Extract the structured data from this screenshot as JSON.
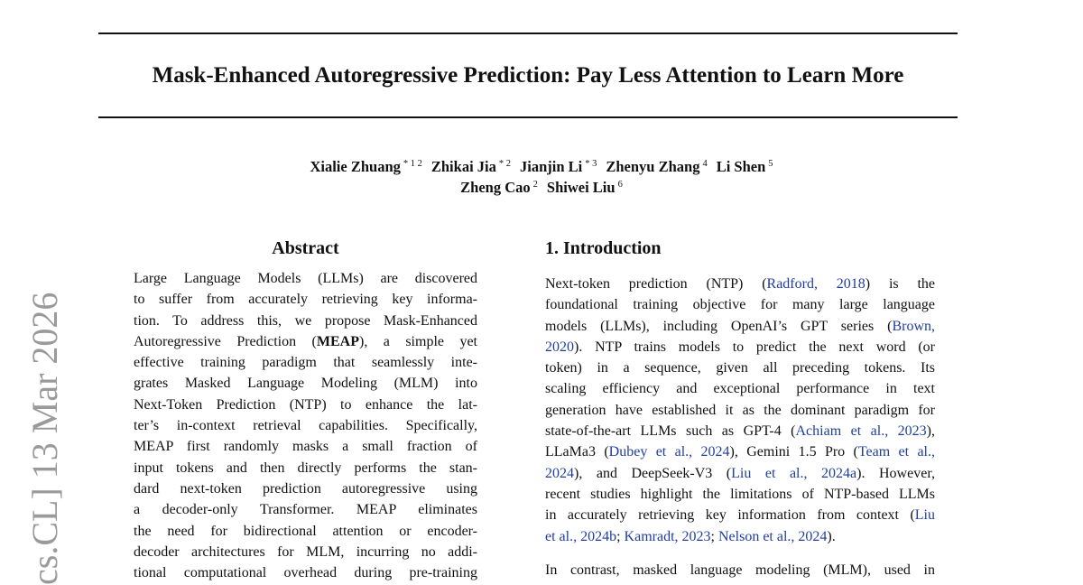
{
  "title": "Mask-Enhanced Autoregressive Prediction: Pay Less Attention to Learn More",
  "authors_line1": [
    {
      "name": "Xialie Zhuang",
      "aff": "* 1 2"
    },
    {
      "name": "Zhikai Jia",
      "aff": "* 2"
    },
    {
      "name": "Jianjin Li",
      "aff": "* 3"
    },
    {
      "name": "Zhenyu Zhang",
      "aff": "4"
    },
    {
      "name": "Li Shen",
      "aff": "5"
    }
  ],
  "authors_line2": [
    {
      "name": "Zheng Cao",
      "aff": "2"
    },
    {
      "name": "Shiwei Liu",
      "aff": "6"
    }
  ],
  "arxiv_stamp": "cs.CL]  13 Mar 2026",
  "abstract": {
    "heading": "Abstract",
    "lines": [
      "Large Language Models (LLMs) are discovered",
      "to suffer from accurately retrieving key informa-",
      "tion. To address this, we propose Mask-Enhanced",
      "Autoregressive Prediction (MEAP), a simple yet",
      "effective training paradigm that seamlessly inte-",
      "grates Masked Language Modeling (MLM) into",
      "Next-Token Prediction (NTP) to enhance the lat-",
      "ter’s in-context retrieval capabilities. Specifically,",
      "MEAP first randomly masks a small fraction of",
      "input tokens and then directly performs the stan-",
      "dard next-token prediction autoregressive using",
      "a decoder-only Transformer. MEAP eliminates",
      "the need for bidirectional attention or encoder-",
      "decoder architectures for MLM, incurring no addi-",
      "tional computational overhead during pre-training"
    ]
  },
  "introduction": {
    "heading": "1. Introduction",
    "p1_lines": [
      [
        {
          "t": "Next-token prediction (NTP) ("
        },
        {
          "t": "Radford, 2018",
          "c": 1
        },
        {
          "t": ") is the"
        }
      ],
      [
        {
          "t": "foundational training objective for many large language"
        }
      ],
      [
        {
          "t": "models (LLMs), including OpenAI’s GPT series ("
        },
        {
          "t": "Brown,",
          "c": 1
        }
      ],
      [
        {
          "t": "2020",
          "c": 1
        },
        {
          "t": ").  NTP trains models to predict the next word (or"
        }
      ],
      [
        {
          "t": "token) in a sequence, given all preceding tokens.  Its"
        }
      ],
      [
        {
          "t": "scaling efficiency and exceptional performance in text"
        }
      ],
      [
        {
          "t": "generation have established it as the dominant paradigm for"
        }
      ],
      [
        {
          "t": "state-of-the-art LLMs such as GPT-4 ("
        },
        {
          "t": "Achiam et al., 2023",
          "c": 1
        },
        {
          "t": "),"
        }
      ],
      [
        {
          "t": "LLaMa3 ("
        },
        {
          "t": "Dubey et al., 2024",
          "c": 1
        },
        {
          "t": "), Gemini 1.5 Pro ("
        },
        {
          "t": "Team et al.,",
          "c": 1
        }
      ],
      [
        {
          "t": "2024",
          "c": 1
        },
        {
          "t": "), and DeepSeek-V3 ("
        },
        {
          "t": "Liu et al., 2024a",
          "c": 1
        },
        {
          "t": ").  However,"
        }
      ],
      [
        {
          "t": "recent studies highlight the limitations of NTP-based LLMs"
        }
      ],
      [
        {
          "t": "in accurately retrieving key information from context ("
        },
        {
          "t": "Liu",
          "c": 1
        }
      ],
      [
        {
          "t": "et al., 2024b",
          "c": 1
        },
        {
          "t": "; "
        },
        {
          "t": "Kamradt, 2023",
          "c": 1
        },
        {
          "t": "; "
        },
        {
          "t": "Nelson et al., 2024",
          "c": 1
        },
        {
          "t": ")."
        }
      ]
    ],
    "p2_lines": [
      [
        {
          "t": "In contrast, masked language modeling (MLM), used in"
        }
      ]
    ]
  }
}
